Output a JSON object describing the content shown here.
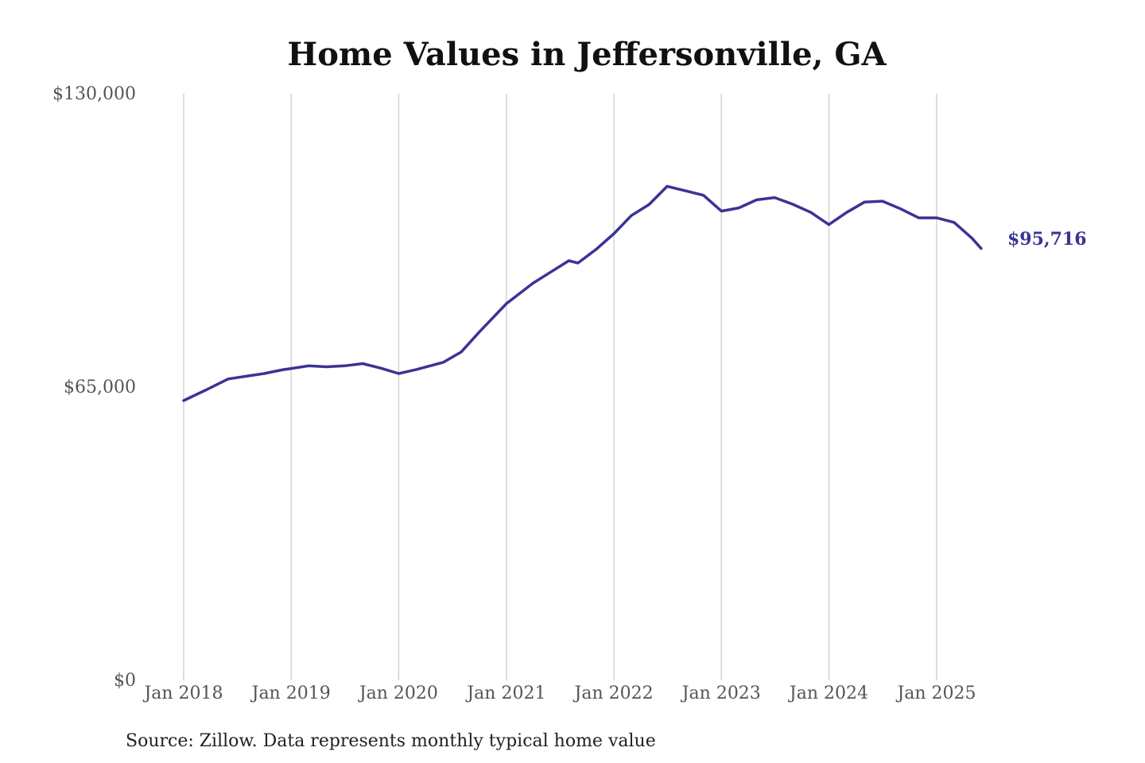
{
  "chart_data": {
    "type": "line",
    "title": "Home Values in Jeffersonville, GA",
    "xlabel": "",
    "ylabel": "",
    "ylim": [
      0,
      130000
    ],
    "y_ticks": [
      {
        "value": 0,
        "label": "$0"
      },
      {
        "value": 65000,
        "label": "$65,000"
      },
      {
        "value": 130000,
        "label": "$130,000"
      }
    ],
    "x_ticks": [
      {
        "value": "2018-01",
        "label": "Jan 2018"
      },
      {
        "value": "2019-01",
        "label": "Jan 2019"
      },
      {
        "value": "2020-01",
        "label": "Jan 2020"
      },
      {
        "value": "2021-01",
        "label": "Jan 2021"
      },
      {
        "value": "2022-01",
        "label": "Jan 2022"
      },
      {
        "value": "2023-01",
        "label": "Jan 2023"
      },
      {
        "value": "2024-01",
        "label": "Jan 2024"
      },
      {
        "value": "2025-01",
        "label": "Jan 2025"
      }
    ],
    "grid": "vertical",
    "legend": "none",
    "line_color": "#3a3396",
    "end_label": "$95,716",
    "source": "Source: Zillow. Data represents monthly typical home value",
    "series": [
      {
        "x": [
          "2018-01",
          "2018-04",
          "2018-06",
          "2018-08",
          "2018-10",
          "2018-12",
          "2019-03",
          "2019-05",
          "2019-07",
          "2019-09",
          "2019-11",
          "2020-01",
          "2020-03",
          "2020-06",
          "2020-08",
          "2020-10",
          "2021-01",
          "2021-04",
          "2021-06",
          "2021-08",
          "2021-09",
          "2021-11",
          "2022-01",
          "2022-03",
          "2022-05",
          "2022-07",
          "2022-09",
          "2022-11",
          "2023-01",
          "2023-03",
          "2023-05",
          "2023-07",
          "2023-09",
          "2023-11",
          "2024-01",
          "2024-03",
          "2024-05",
          "2024-07",
          "2024-09",
          "2024-11",
          "2025-01",
          "2025-03",
          "2025-05",
          "2025-06"
        ],
        "values": [
          62000,
          64800,
          66800,
          67400,
          68000,
          68800,
          69700,
          69500,
          69700,
          70200,
          69200,
          68000,
          68900,
          70500,
          72800,
          77200,
          83500,
          88000,
          90500,
          93000,
          92500,
          95500,
          99000,
          103000,
          105500,
          109500,
          108500,
          107500,
          104000,
          104700,
          106500,
          107000,
          105500,
          103700,
          101000,
          103700,
          106000,
          106200,
          104500,
          102500,
          102500,
          101500,
          98000,
          95716
        ]
      }
    ]
  }
}
